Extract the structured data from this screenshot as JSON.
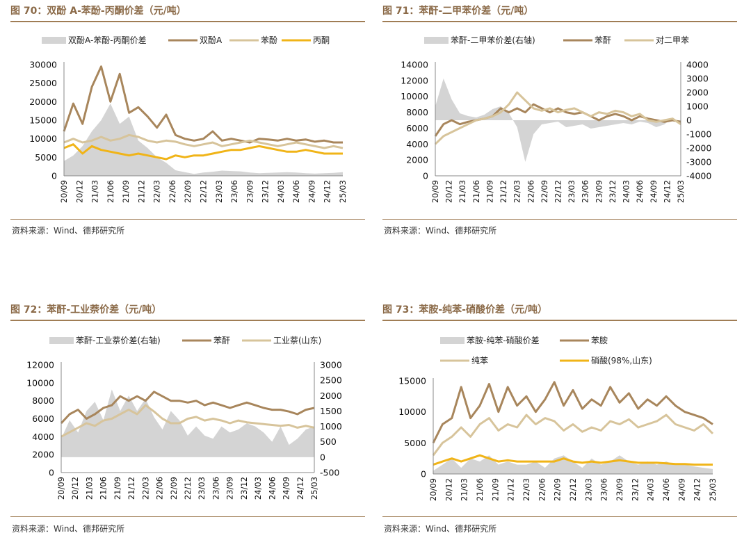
{
  "sources": [
    "资料来源：Wind、德邦研究所",
    "资料来源：Wind、德邦研究所",
    "资料来源：Wind、德邦研究所",
    "资料来源：Wind、德邦研究所"
  ],
  "colors": {
    "spread": "#d4d4d4",
    "dark": "#a8865c",
    "light": "#d7c49b",
    "yellow": "#f0b418",
    "rule": "#a07d55",
    "title": "#8b6a48"
  },
  "chart_data": [
    {
      "type": "line",
      "title": "图 70：双酚 A-苯酚-丙酮价差（元/吨）",
      "legend": [
        "双酚A-苯酚-丙酮价差",
        "双酚A",
        "苯酚",
        "丙酮"
      ],
      "x_ticks": [
        "20/09",
        "20/12",
        "21/03",
        "21/06",
        "21/09",
        "21/12",
        "22/03",
        "22/06",
        "22/09",
        "22/12",
        "23/03",
        "23/06",
        "23/09",
        "23/12",
        "24/03",
        "24/06",
        "24/09",
        "24/12",
        "25/03"
      ],
      "y_ticks": [
        "30000",
        "25000",
        "20000",
        "15000",
        "10000",
        "5000",
        "0"
      ],
      "ylim": [
        0,
        30000
      ],
      "series": [
        {
          "name": "双酚A-苯酚-丙酮价差",
          "kind": "area",
          "color": "#d4d4d4",
          "values": [
            4000,
            5500,
            8000,
            12000,
            15000,
            19500,
            14000,
            16000,
            9500,
            7500,
            5000,
            3500,
            1500,
            1000,
            500,
            900,
            1100,
            1400,
            1300,
            1200,
            900,
            700,
            800,
            900,
            1000,
            900,
            700,
            600,
            700,
            800,
            1000
          ]
        },
        {
          "name": "双酚A",
          "kind": "line",
          "color": "#a8865c",
          "values": [
            12000,
            19500,
            14000,
            24000,
            29500,
            20000,
            27500,
            17000,
            18500,
            16000,
            13000,
            16500,
            11000,
            10000,
            9500,
            10000,
            12000,
            9500,
            10000,
            9500,
            9000,
            10000,
            9800,
            9500,
            10000,
            9500,
            9800,
            9200,
            9500,
            9000,
            9000
          ]
        },
        {
          "name": "苯酚",
          "kind": "line",
          "color": "#d7c49b",
          "values": [
            9000,
            10000,
            9000,
            9500,
            10500,
            9500,
            10000,
            11000,
            10500,
            9500,
            9000,
            9500,
            9200,
            8500,
            8000,
            8500,
            9000,
            8000,
            8500,
            9000,
            9500,
            9000,
            8500,
            8000,
            8500,
            9000,
            8500,
            8000,
            7500,
            8000,
            7500
          ]
        },
        {
          "name": "丙酮",
          "kind": "line",
          "color": "#f0b418",
          "values": [
            7500,
            8500,
            6000,
            8000,
            7000,
            6500,
            6000,
            5500,
            6000,
            5500,
            5000,
            4500,
            5500,
            5000,
            5500,
            5500,
            6000,
            6500,
            7000,
            7000,
            7500,
            8000,
            7500,
            7000,
            6500,
            6500,
            7000,
            6500,
            6000,
            6000,
            6000
          ]
        }
      ]
    },
    {
      "type": "line",
      "title": "图 71：苯酐-二甲苯价差（元/吨）",
      "legend": [
        "苯酐-二甲苯价差(右轴)",
        "苯酐",
        "对二甲苯"
      ],
      "x_ticks": [
        "20/09",
        "20/12",
        "21/03",
        "21/06",
        "21/09",
        "21/12",
        "22/03",
        "22/06",
        "22/09",
        "22/12",
        "23/03",
        "23/06",
        "23/09",
        "23/12",
        "24/03",
        "24/06",
        "24/09",
        "24/12",
        "25/03"
      ],
      "y_ticks": [
        "14000",
        "12000",
        "10000",
        "8000",
        "6000",
        "4000",
        "2000",
        "0"
      ],
      "y2_ticks": [
        "4000",
        "3000",
        "2000",
        "1000",
        "0",
        "-1000",
        "-2000",
        "-3000",
        "-4000"
      ],
      "ylim": [
        0,
        14000
      ],
      "y2lim": [
        -4000,
        4000
      ],
      "series": [
        {
          "name": "苯酐-二甲苯价差(右轴)",
          "kind": "area",
          "axis": "right",
          "color": "#d4d4d4",
          "values": [
            1000,
            3000,
            1500,
            500,
            300,
            200,
            400,
            800,
            1000,
            500,
            -500,
            -3000,
            -1000,
            -300,
            -200,
            -100,
            -500,
            -400,
            -300,
            -600,
            -500,
            -400,
            -300,
            -200,
            -300,
            -100,
            -200,
            -500,
            -300,
            200,
            -200
          ]
        },
        {
          "name": "苯酐",
          "kind": "line",
          "color": "#a8865c",
          "values": [
            5000,
            6500,
            7000,
            6500,
            6800,
            7000,
            7200,
            7500,
            8500,
            8000,
            8500,
            8000,
            9000,
            8500,
            8000,
            8500,
            8000,
            7800,
            8000,
            7500,
            7000,
            7500,
            7800,
            7500,
            7000,
            7500,
            7200,
            7000,
            6800,
            7000,
            6800
          ]
        },
        {
          "name": "对二甲苯",
          "kind": "line",
          "color": "#d7c49b",
          "values": [
            4000,
            5000,
            5500,
            6000,
            6500,
            7000,
            7200,
            7500,
            8000,
            9000,
            10500,
            9500,
            8500,
            8200,
            8500,
            8000,
            8300,
            8500,
            8000,
            7500,
            8000,
            7800,
            8200,
            8000,
            7500,
            7800,
            7000,
            6800,
            7000,
            7200,
            6500
          ]
        }
      ]
    },
    {
      "type": "line",
      "title": "图 72：苯酐-工业萘价差（元/吨）",
      "legend": [
        "苯酐-工业萘价差(右轴)",
        "苯酐",
        "工业萘(山东)"
      ],
      "x_ticks": [
        "20/09",
        "20/12",
        "21/03",
        "21/06",
        "21/09",
        "21/12",
        "22/03",
        "22/06",
        "22/09",
        "22/12",
        "23/03",
        "23/06",
        "23/09",
        "23/12",
        "24/03",
        "24/06",
        "24/09",
        "24/12",
        "25/03"
      ],
      "y_ticks": [
        "12000",
        "10000",
        "8000",
        "6000",
        "4000",
        "2000",
        "0"
      ],
      "y2_ticks": [
        "3000",
        "2500",
        "2000",
        "1500",
        "1000",
        "500",
        "0",
        "-500"
      ],
      "ylim": [
        0,
        12000
      ],
      "y2lim": [
        -500,
        3000
      ],
      "series": [
        {
          "name": "苯酐-工业萘价差(右轴)",
          "kind": "area",
          "axis": "right",
          "color": "#d4d4d4",
          "values": [
            600,
            1200,
            800,
            1500,
            1800,
            1200,
            2200,
            1500,
            2000,
            1500,
            1900,
            1300,
            900,
            1500,
            1200,
            700,
            1000,
            700,
            600,
            1000,
            800,
            900,
            1100,
            1000,
            800,
            500,
            1000,
            400,
            600,
            900,
            1000
          ]
        },
        {
          "name": "苯酐",
          "kind": "line",
          "color": "#a8865c",
          "values": [
            5500,
            6500,
            7000,
            6000,
            6500,
            7200,
            7500,
            8500,
            8000,
            8500,
            8000,
            9000,
            8500,
            8000,
            8000,
            7800,
            8000,
            7500,
            7800,
            7500,
            7200,
            7500,
            7800,
            7500,
            7200,
            7000,
            7000,
            6800,
            6500,
            7000,
            7200
          ]
        },
        {
          "name": "工业萘(山东)",
          "kind": "line",
          "color": "#d7c49b",
          "values": [
            4000,
            4500,
            5000,
            5500,
            5200,
            5800,
            6000,
            6500,
            7000,
            6500,
            7500,
            6800,
            6000,
            5500,
            5500,
            6000,
            6200,
            5800,
            6000,
            5800,
            5500,
            5800,
            5600,
            5500,
            5400,
            5300,
            5200,
            5300,
            5000,
            5200,
            5000
          ]
        }
      ]
    },
    {
      "type": "line",
      "title": "图 73：苯胺-纯苯-硝酸价差（元/吨）",
      "legend": [
        "苯胺-纯苯-硝酸价差",
        "苯胺",
        "纯苯",
        "硝酸(98%,山东)"
      ],
      "x_ticks": [
        "20/09",
        "20/12",
        "21/03",
        "21/06",
        "21/09",
        "21/12",
        "22/03",
        "22/06",
        "22/09",
        "22/12",
        "23/03",
        "23/06",
        "23/09",
        "23/12",
        "24/03",
        "24/06",
        "24/09",
        "24/12",
        "25/03"
      ],
      "y_ticks": [
        "15000",
        "10000",
        "5000",
        "0"
      ],
      "ylim": [
        0,
        15000
      ],
      "series": [
        {
          "name": "苯胺-纯苯-硝酸价差",
          "kind": "area",
          "color": "#d4d4d4",
          "values": [
            500,
            1500,
            2500,
            1000,
            2500,
            2000,
            3000,
            1500,
            2000,
            1500,
            1500,
            2000,
            1000,
            2500,
            3000,
            2000,
            1000,
            2500,
            1500,
            2000,
            3000,
            2000,
            1500,
            2000,
            1500,
            2000,
            1500,
            1500,
            1200,
            1000,
            800
          ]
        },
        {
          "name": "苯胺",
          "kind": "line",
          "color": "#a8865c",
          "values": [
            5000,
            8000,
            9000,
            14000,
            9000,
            11000,
            14500,
            10000,
            14000,
            11000,
            12500,
            10000,
            12000,
            14800,
            11000,
            13500,
            10500,
            12000,
            11000,
            14000,
            11500,
            13000,
            10500,
            12000,
            11000,
            12500,
            11000,
            10000,
            9500,
            9000,
            8000
          ]
        },
        {
          "name": "纯苯",
          "kind": "line",
          "color": "#d7c49b",
          "values": [
            3000,
            5000,
            6000,
            7500,
            6000,
            8000,
            9000,
            7000,
            8000,
            7500,
            9500,
            8000,
            9000,
            8500,
            7000,
            8000,
            6800,
            7500,
            7000,
            8500,
            8000,
            8800,
            7500,
            8000,
            8500,
            9500,
            8000,
            7500,
            7000,
            8000,
            6500
          ]
        },
        {
          "name": "硝酸(98%,山东)",
          "kind": "line",
          "color": "#f0b418",
          "values": [
            1500,
            2000,
            2500,
            2000,
            2500,
            3000,
            2500,
            2000,
            2200,
            2000,
            2000,
            2000,
            2000,
            2000,
            2500,
            2000,
            1800,
            2000,
            1800,
            2000,
            2200,
            2000,
            1800,
            1800,
            1800,
            1700,
            1600,
            1600,
            1500,
            1500,
            1500
          ]
        }
      ]
    }
  ]
}
